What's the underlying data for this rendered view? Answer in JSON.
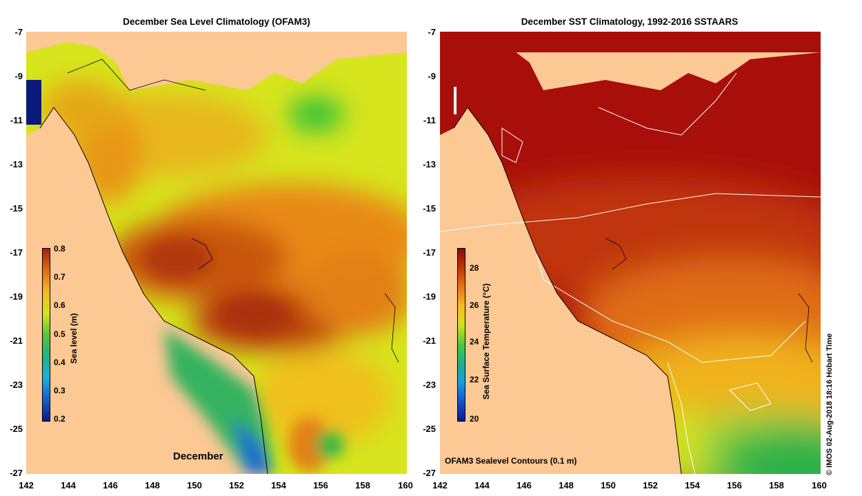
{
  "left_panel": {
    "title": "December Sea Level Climatology (OFAM3)",
    "colorbar_label": "Sea level (m)",
    "colorbar_ticks": [
      "0.8",
      "0.7",
      "0.6",
      "0.5",
      "0.4",
      "0.3",
      "0.2"
    ],
    "month_label": "December"
  },
  "right_panel": {
    "title": "December SST Climatology, 1992-2016 SSTAARS",
    "colorbar_label": "Sea Surface Temperature (°C)",
    "colorbar_ticks": [
      "28",
      "26",
      "24",
      "22",
      "20"
    ],
    "contour_note": "OFAM3 Sealevel Contours (0.1 m)"
  },
  "axes": {
    "y_ticks": [
      "-7",
      "-9",
      "-11",
      "-13",
      "-15",
      "-17",
      "-19",
      "-21",
      "-23",
      "-25",
      "-27"
    ],
    "x_ticks": [
      "142",
      "144",
      "146",
      "148",
      "150",
      "152",
      "154",
      "156",
      "158",
      "160"
    ]
  },
  "credit": "© IMOS 02-Aug-2018 18:16 Hobart Time",
  "colors": {
    "land": "#fcc894",
    "sl_high": "#b23a0c",
    "sl_mid": "#f5a623",
    "sl_low": "#1e4fd2",
    "sst_high": "#a80f0a",
    "sst_low": "#2fb34a"
  }
}
